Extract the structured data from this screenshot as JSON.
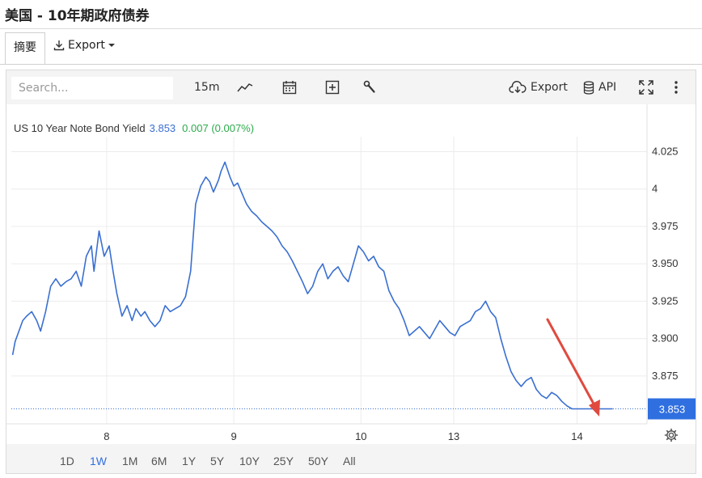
{
  "page": {
    "title": "美国 - 10年期政府债券"
  },
  "tabs": {
    "summary": "摘要",
    "export": "Export"
  },
  "toolbar": {
    "search_placeholder": "Search...",
    "interval": "15m",
    "export_label": "Export",
    "api_label": "API"
  },
  "legend": {
    "name": "US 10 Year Note Bond Yield",
    "value": "3.853",
    "change": "0.007 (0.007%)"
  },
  "range_buttons": [
    "1D",
    "1W",
    "1M",
    "6M",
    "1Y",
    "5Y",
    "10Y",
    "25Y",
    "50Y",
    "All"
  ],
  "range_active": "1W",
  "colors": {
    "line": "#3a6fd1",
    "arrow": "#e04a3f",
    "last_badge": "#2f6fe0",
    "change_positive": "#2bab4a"
  },
  "chart_data": {
    "type": "line",
    "title": "",
    "xlabel": "",
    "ylabel": "",
    "ylim": [
      3.843,
      4.035
    ],
    "x_ticks": [
      {
        "label": "8",
        "x": 1.0
      },
      {
        "label": "9",
        "x": 2.0
      },
      {
        "label": "10",
        "x": 3.0
      },
      {
        "label": "13",
        "x": 3.73
      },
      {
        "label": "14",
        "x": 4.7
      }
    ],
    "xlim": [
      0.25,
      5.25
    ],
    "y_ticks": [
      "3.875",
      "3.900",
      "3.925",
      "3.950",
      "3.975",
      "4",
      "4.025"
    ],
    "last_value_label": "3.853",
    "grid": true,
    "series": [
      {
        "name": "",
        "x": [
          0.26,
          0.28,
          0.31,
          0.34,
          0.37,
          0.41,
          0.45,
          0.48,
          0.52,
          0.56,
          0.6,
          0.64,
          0.68,
          0.72,
          0.76,
          0.8,
          0.84,
          0.88,
          0.9,
          0.94,
          0.98,
          1.02,
          1.05,
          1.08,
          1.12,
          1.16,
          1.2,
          1.23,
          1.27,
          1.3,
          1.34,
          1.38,
          1.42,
          1.46,
          1.5,
          1.54,
          1.58,
          1.62,
          1.66,
          1.7,
          1.74,
          1.78,
          1.81,
          1.84,
          1.86,
          1.88,
          1.9,
          1.93,
          1.97,
          2.0,
          2.03,
          2.06,
          2.1,
          2.14,
          2.18,
          2.22,
          2.26,
          2.3,
          2.34,
          2.38,
          2.42,
          2.46,
          2.5,
          2.54,
          2.58,
          2.62,
          2.66,
          2.7,
          2.74,
          2.78,
          2.82,
          2.86,
          2.9,
          2.94,
          2.98,
          3.02,
          3.06,
          3.1,
          3.14,
          3.18,
          3.22,
          3.26,
          3.3,
          3.34,
          3.38,
          3.42,
          3.46,
          3.5,
          3.54,
          3.58,
          3.62,
          3.66,
          3.7,
          3.74,
          3.78,
          3.82,
          3.86,
          3.9,
          3.94,
          3.98,
          4.02,
          4.06,
          4.1,
          4.14,
          4.18,
          4.22,
          4.26,
          4.3,
          4.34,
          4.38,
          4.42,
          4.46,
          4.5,
          4.54,
          4.58,
          4.62,
          4.66,
          4.7,
          4.74,
          4.78,
          4.82,
          4.86,
          4.9,
          4.94,
          4.98,
          5.02,
          5.06
        ],
        "values": [
          3.889,
          3.898,
          3.905,
          3.912,
          3.915,
          3.918,
          3.912,
          3.905,
          3.918,
          3.935,
          3.94,
          3.935,
          3.938,
          3.94,
          3.945,
          3.935,
          3.955,
          3.962,
          3.945,
          3.972,
          3.955,
          3.962,
          3.945,
          3.93,
          3.915,
          3.922,
          3.912,
          3.92,
          3.915,
          3.918,
          3.912,
          3.908,
          3.912,
          3.922,
          3.918,
          3.92,
          3.922,
          3.928,
          3.945,
          3.99,
          4.002,
          4.008,
          4.005,
          3.998,
          4.002,
          4.006,
          4.012,
          4.018,
          4.008,
          4.002,
          4.004,
          3.998,
          3.99,
          3.985,
          3.982,
          3.978,
          3.975,
          3.972,
          3.968,
          3.962,
          3.958,
          3.952,
          3.945,
          3.938,
          3.93,
          3.935,
          3.945,
          3.95,
          3.94,
          3.945,
          3.948,
          3.942,
          3.938,
          3.95,
          3.962,
          3.958,
          3.952,
          3.955,
          3.948,
          3.945,
          3.932,
          3.925,
          3.92,
          3.912,
          3.902,
          3.905,
          3.908,
          3.904,
          3.9,
          3.906,
          3.912,
          3.908,
          3.904,
          3.902,
          3.908,
          3.91,
          3.912,
          3.918,
          3.92,
          3.925,
          3.918,
          3.914,
          3.9,
          3.888,
          3.878,
          3.872,
          3.868,
          3.872,
          3.874,
          3.866,
          3.862,
          3.86,
          3.864,
          3.862,
          3.858,
          3.855,
          3.853,
          3.853,
          3.853,
          3.853,
          3.853,
          3.853,
          3.853,
          3.853,
          3.853,
          3.853,
          3.853
        ]
      }
    ]
  }
}
